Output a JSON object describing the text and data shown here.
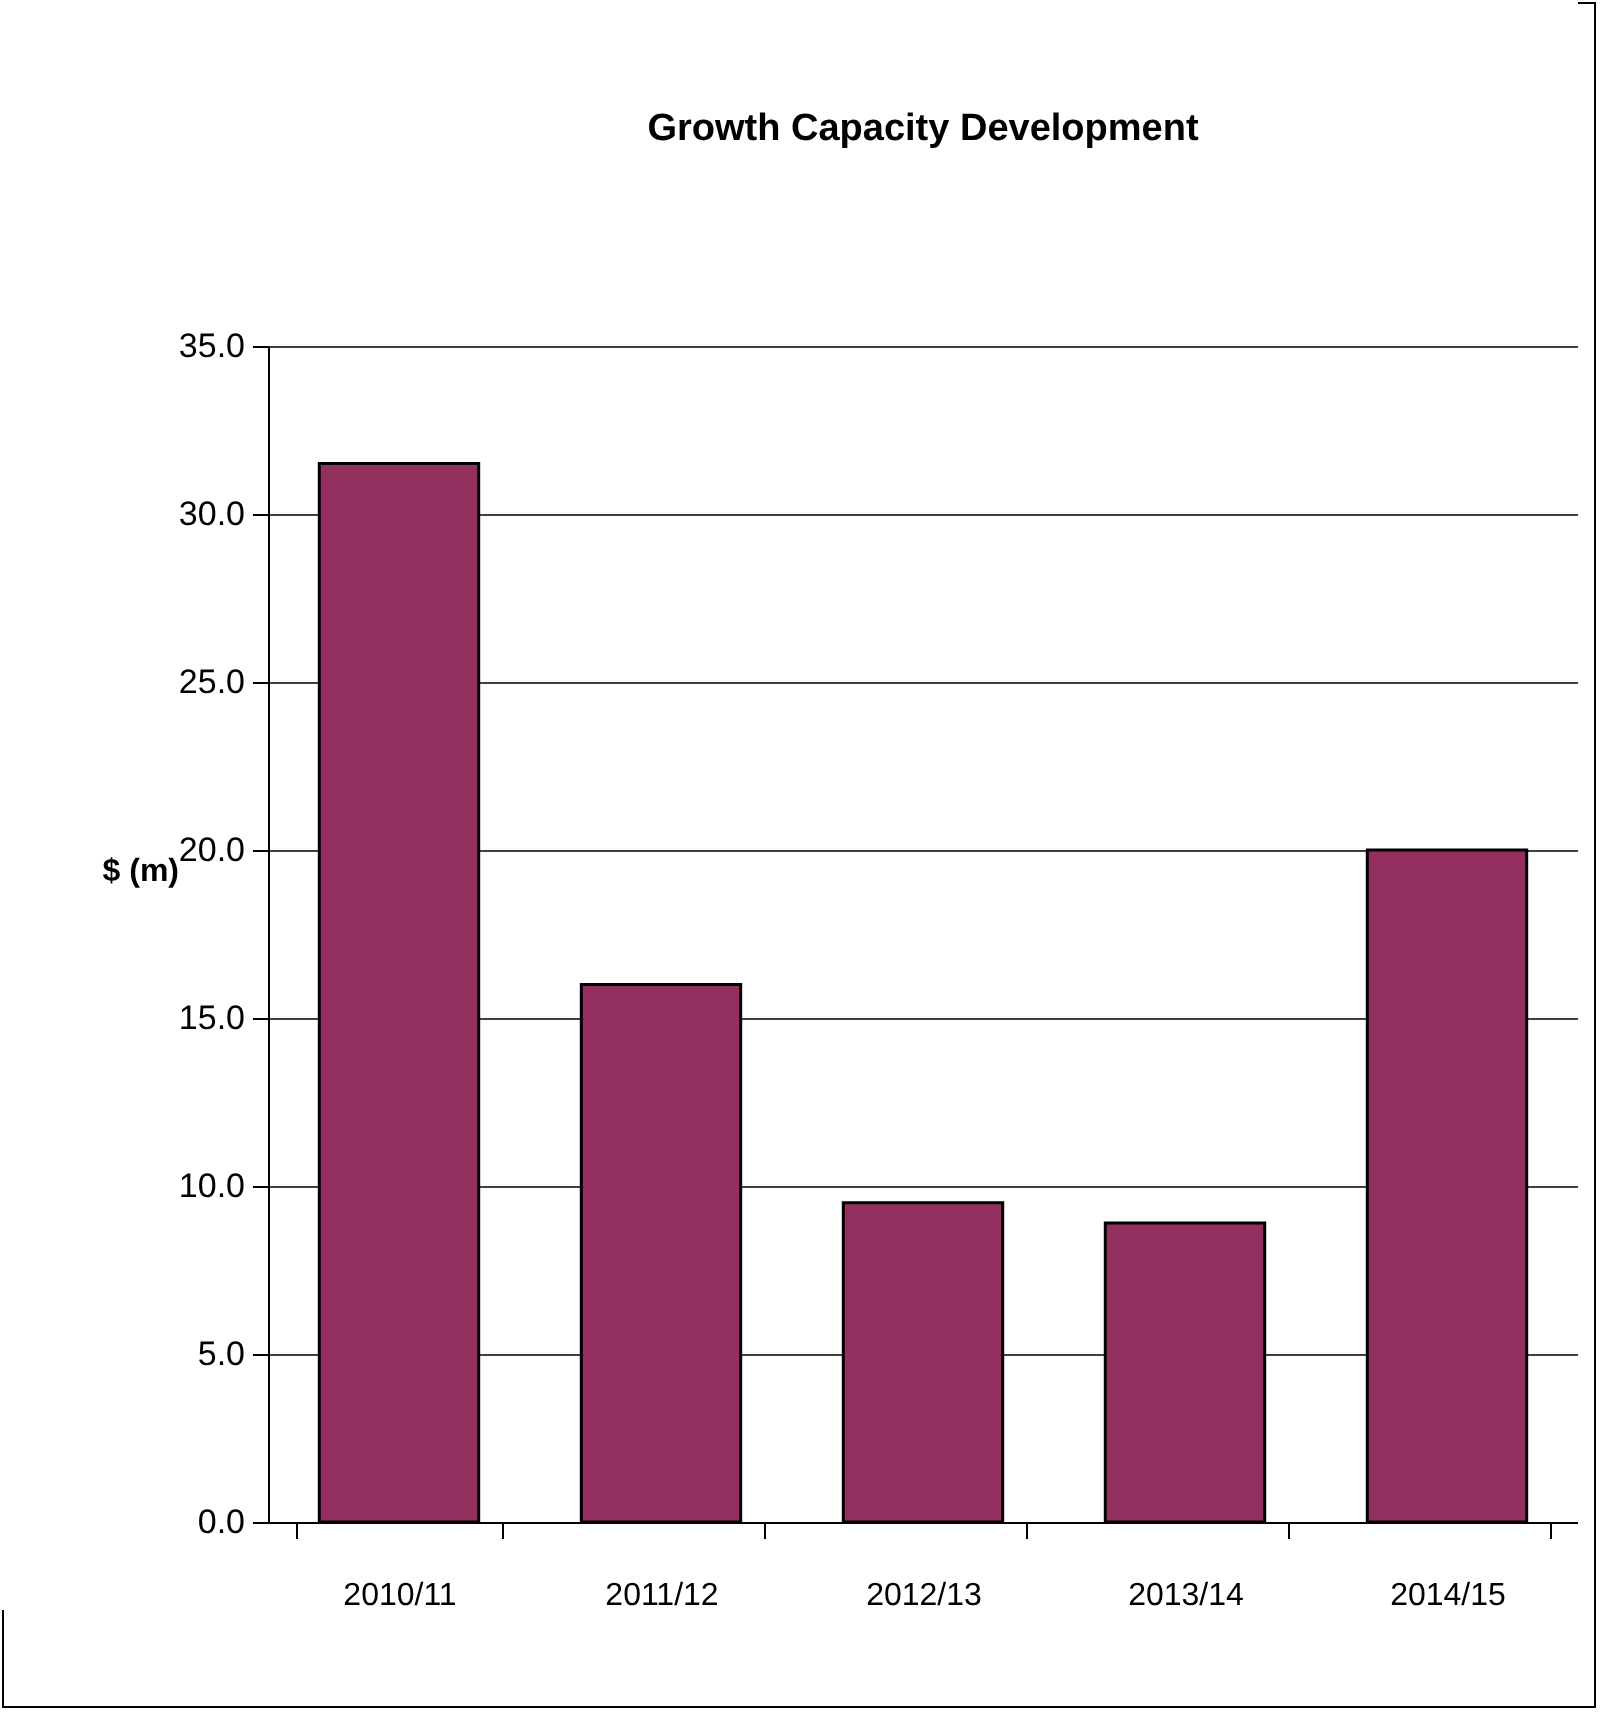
{
  "chart_data": {
    "type": "bar",
    "title": "Growth Capacity Development",
    "ylabel": "$ (m)",
    "categories": [
      "2010/11",
      "2011/12",
      "2012/13",
      "2013/14",
      "2014/15"
    ],
    "values": [
      31.5,
      16.0,
      9.5,
      8.9,
      20.0
    ],
    "color": "#93305f",
    "ylim": [
      0,
      35
    ],
    "yticks": [
      {
        "value": 0,
        "label": "0.0"
      },
      {
        "value": 5,
        "label": "5.0"
      },
      {
        "value": 10,
        "label": "10.0"
      },
      {
        "value": 15,
        "label": "15.0"
      },
      {
        "value": 20,
        "label": "20.0"
      },
      {
        "value": 25,
        "label": "25.0"
      },
      {
        "value": 30,
        "label": "30.0"
      },
      {
        "value": 35,
        "label": "35.0"
      }
    ],
    "grid": "y"
  }
}
